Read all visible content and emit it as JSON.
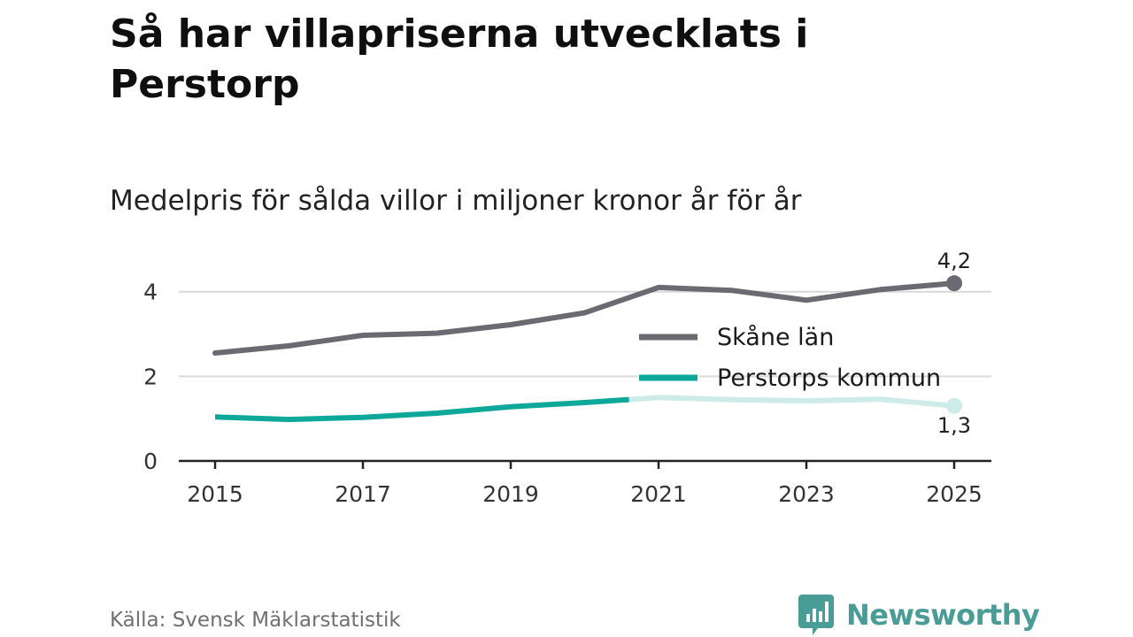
{
  "title": "Så har villapriserna utvecklats i Perstorp",
  "subtitle": "Medelpris för sålda villor i miljoner kronor år för år",
  "source": "Källa: Svensk Mäklarstatistik",
  "brand": "Newsworthy",
  "colors": {
    "skane": "#6b6a72",
    "perstorp": "#0ea89a",
    "perstorp_faded": "#cdebe8",
    "grid": "#d9d9d9",
    "axis": "#222222"
  },
  "chart_data": {
    "type": "line",
    "x": [
      2015,
      2016,
      2017,
      2018,
      2019,
      2020,
      2021,
      2022,
      2023,
      2024,
      2025
    ],
    "series": [
      {
        "name": "Skåne län",
        "values": [
          2.55,
          2.72,
          2.97,
          3.02,
          3.22,
          3.5,
          4.1,
          4.03,
          3.8,
          4.05,
          4.2
        ],
        "end_label": "4,2"
      },
      {
        "name": "Perstorps kommun",
        "values": [
          1.04,
          0.98,
          1.03,
          1.13,
          1.28,
          1.38,
          1.5,
          1.45,
          1.42,
          1.46,
          1.3
        ],
        "end_label": "1,3",
        "faded_from": 2020.6
      }
    ],
    "xticks": [
      "2015",
      "2017",
      "2019",
      "2021",
      "2023",
      "2025"
    ],
    "xtick_values": [
      2015,
      2017,
      2019,
      2021,
      2023,
      2025
    ],
    "yticks": [
      "0",
      "2",
      "4"
    ],
    "ytick_values": [
      0,
      2,
      4
    ],
    "xlim": [
      2014.5,
      2025.5
    ],
    "ylim": [
      0,
      4.6
    ],
    "grid": true,
    "legend": "right"
  }
}
